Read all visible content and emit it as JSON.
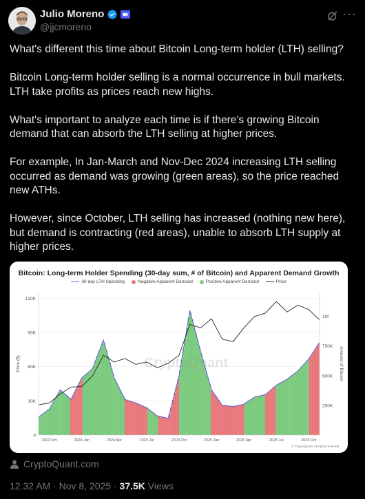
{
  "author": {
    "name": "Julio Moreno",
    "handle": "@jjcmoreno"
  },
  "tweet": {
    "paragraphs": [
      "What's different this time about Bitcoin Long-term holder (LTH) selling?",
      "Bitcoin Long-term holder selling is a normal occurrence in bull markets. LTH take profits as prices reach new highs.",
      "What's important to analyze each time is if there's growing Bitcoin demand that can absorb the LTH selling at higher prices.",
      "For example, In Jan-March and Nov-Dec 2024 increasing LTH selling occurred as demand was growing (green areas), so the price reached new ATHs.",
      "However, since October, LTH selling has increased (nothing new here), but demand is contracting (red areas), unable to absorb LTH supply at higher prices."
    ]
  },
  "source": {
    "label": "CryptoQuant.com"
  },
  "meta": {
    "time": "12:32 AM · Nov 8, 2025 · ",
    "views_count": "37.5K",
    "views_label": " Views"
  },
  "colors": {
    "negative": "#e8797c",
    "positive": "#7dcb7f",
    "lth_line": "#5b5bd6",
    "price_line": "#222222",
    "verified": "#1d9bf0"
  },
  "chart_data": {
    "type": "area",
    "title": "Bitcoin: Long-term Holder Spending (30-day sum, # of Bitcoin) and Apparent Demand Growth",
    "legend": [
      "30-day LTH Spending",
      "Negative Apparent Demand",
      "Positive Apparent Demand",
      "Price"
    ],
    "ylabel_left": "Price ($)",
    "ylabel_right": "Amount of Bitcoin",
    "y_left_ticks": [
      "0",
      "30K",
      "60K",
      "90K",
      "120K"
    ],
    "y_right_ticks": [
      "250K",
      "500K",
      "750K",
      "1M"
    ],
    "x_ticks": [
      "2023 Oct",
      "2024 Jan",
      "2024 Apr",
      "2024 Jul",
      "2024 Oct",
      "2025 Jan",
      "2025 Apr",
      "2025 Jul",
      "2025 Oct"
    ],
    "watermark": "CryptoQuant",
    "copyright": "© CryptoQuant. All rights reserved",
    "x_range": [
      "2023-09",
      "2025-11"
    ],
    "y_left_range": [
      0,
      125000
    ],
    "y_right_range": [
      0,
      1200000
    ],
    "price_series": [
      [
        "2023-09",
        26500
      ],
      [
        "2023-10",
        28000
      ],
      [
        "2023-11",
        36000
      ],
      [
        "2023-12",
        42000
      ],
      [
        "2024-01",
        42500
      ],
      [
        "2024-02",
        52000
      ],
      [
        "2024-03",
        70000
      ],
      [
        "2024-04",
        64000
      ],
      [
        "2024-05",
        67000
      ],
      [
        "2024-06",
        62000
      ],
      [
        "2024-07",
        64000
      ],
      [
        "2024-08",
        59000
      ],
      [
        "2024-09",
        63000
      ],
      [
        "2024-10",
        70000
      ],
      [
        "2024-11",
        97000
      ],
      [
        "2024-12",
        94000
      ],
      [
        "2025-01",
        102000
      ],
      [
        "2025-02",
        84000
      ],
      [
        "2025-03",
        82000
      ],
      [
        "2025-04",
        94000
      ],
      [
        "2025-05",
        104000
      ],
      [
        "2025-06",
        107000
      ],
      [
        "2025-07",
        117000
      ],
      [
        "2025-08",
        108000
      ],
      [
        "2025-09",
        114000
      ],
      [
        "2025-10",
        110000
      ],
      [
        "2025-11",
        101000
      ]
    ],
    "lth_spending_series": [
      [
        "2023-09",
        150000
      ],
      [
        "2023-10",
        220000
      ],
      [
        "2023-11",
        380000
      ],
      [
        "2023-12",
        300000
      ],
      [
        "2024-01",
        480000
      ],
      [
        "2024-02",
        560000
      ],
      [
        "2024-03",
        800000
      ],
      [
        "2024-04",
        480000
      ],
      [
        "2024-05",
        300000
      ],
      [
        "2024-06",
        270000
      ],
      [
        "2024-07",
        230000
      ],
      [
        "2024-08",
        160000
      ],
      [
        "2024-09",
        140000
      ],
      [
        "2024-10",
        500000
      ],
      [
        "2024-11",
        1050000
      ],
      [
        "2024-12",
        700000
      ],
      [
        "2025-01",
        380000
      ],
      [
        "2025-02",
        250000
      ],
      [
        "2025-03",
        240000
      ],
      [
        "2025-04",
        260000
      ],
      [
        "2025-05",
        320000
      ],
      [
        "2025-06",
        340000
      ],
      [
        "2025-07",
        420000
      ],
      [
        "2025-08",
        470000
      ],
      [
        "2025-09",
        540000
      ],
      [
        "2025-10",
        640000
      ],
      [
        "2025-11",
        780000
      ]
    ],
    "demand_regions": [
      [
        "2023-09",
        "2023-12",
        "positive"
      ],
      [
        "2023-12",
        "2024-01",
        "negative"
      ],
      [
        "2024-01",
        "2024-05",
        "positive"
      ],
      [
        "2024-05",
        "2024-07",
        "negative"
      ],
      [
        "2024-07",
        "2024-08",
        "positive"
      ],
      [
        "2024-08",
        "2024-10",
        "negative"
      ],
      [
        "2024-10",
        "2025-01",
        "positive"
      ],
      [
        "2025-01",
        "2025-02",
        "negative"
      ],
      [
        "2025-02",
        "2025-04",
        "negative"
      ],
      [
        "2025-04",
        "2025-06",
        "positive"
      ],
      [
        "2025-06",
        "2025-07",
        "negative"
      ],
      [
        "2025-07",
        "2025-10",
        "positive"
      ],
      [
        "2025-10",
        "2025-11",
        "negative"
      ]
    ]
  }
}
